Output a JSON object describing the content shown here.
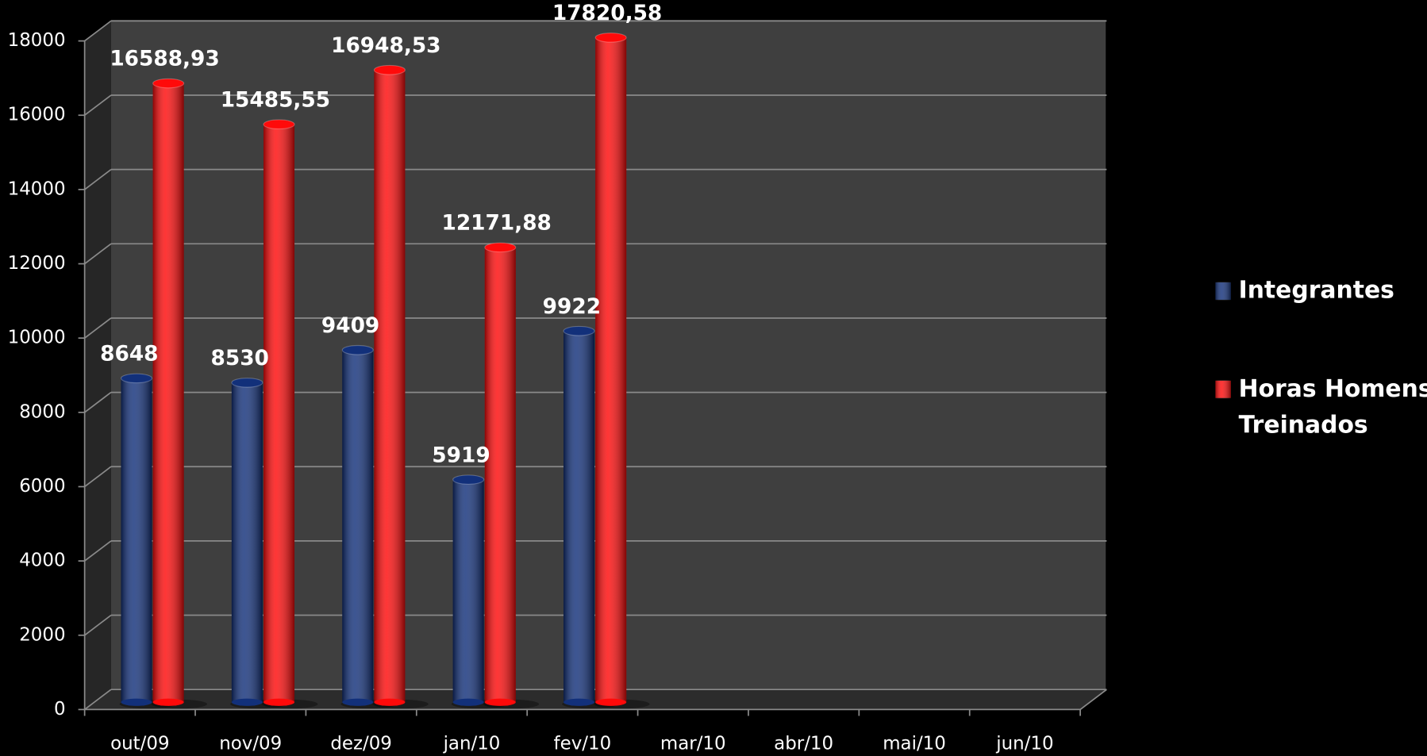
{
  "chart_data": {
    "type": "bar",
    "categories": [
      "out/09",
      "nov/09",
      "dez/09",
      "jan/10",
      "fev/10",
      "mar/10",
      "abr/10",
      "mai/10",
      "jun/10"
    ],
    "series": [
      {
        "name": "Integrantes",
        "color": "#12307a",
        "values": [
          8648,
          8530,
          9409,
          5919,
          9922,
          null,
          null,
          null,
          null
        ]
      },
      {
        "name": "Horas Homens Treinados",
        "color": "#ff0a0a",
        "values": [
          16588.93,
          15485.55,
          16948.53,
          12171.88,
          17820.58,
          null,
          null,
          null,
          null
        ],
        "value_labels": [
          "16588,93",
          "15485,55",
          "16948,53",
          "12171,88",
          "17820,58",
          null,
          null,
          null,
          null
        ]
      }
    ],
    "ylim": [
      0,
      18000
    ],
    "yticks": [
      0,
      2000,
      4000,
      6000,
      8000,
      10000,
      12000,
      14000,
      16000,
      18000
    ],
    "grid": true,
    "legend": "right"
  }
}
